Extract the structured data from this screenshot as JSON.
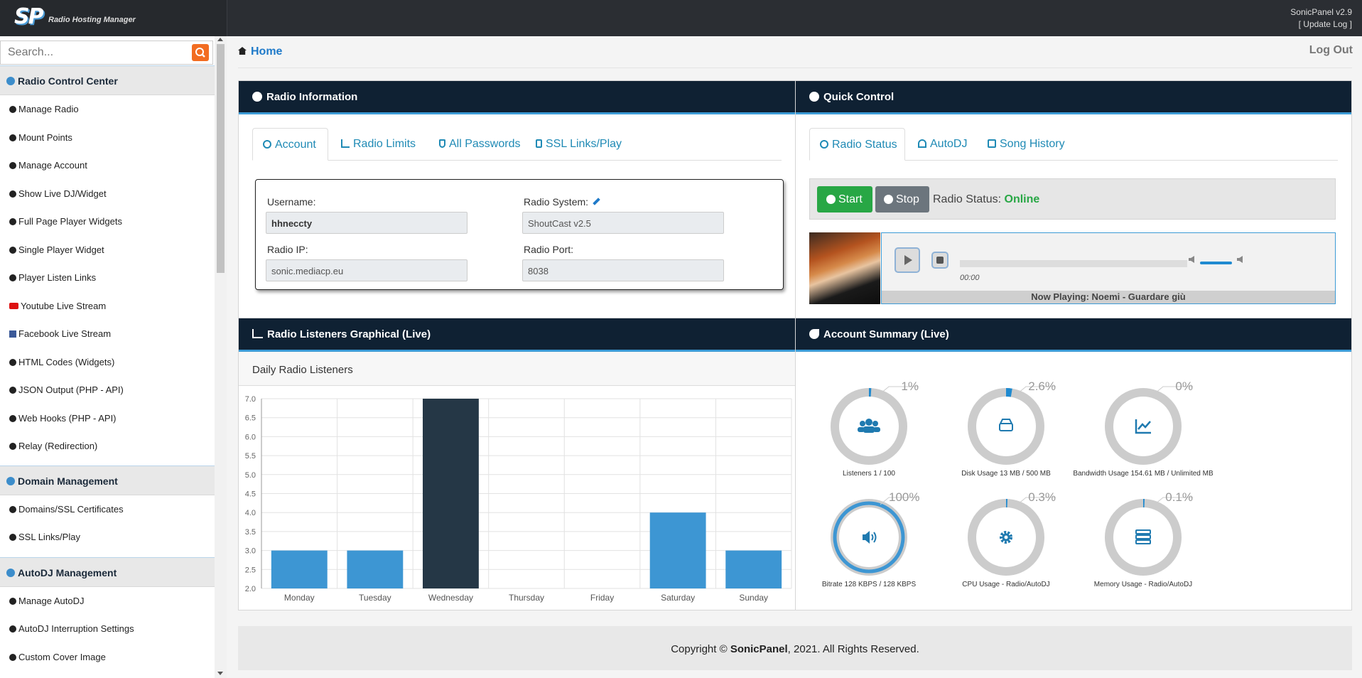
{
  "header": {
    "logo_text": "SP",
    "logo_sub": "Radio Hosting Manager",
    "version": "SonicPanel v2.9",
    "update_log": "[ Update Log ]"
  },
  "sidebar": {
    "search_placeholder": "Search...",
    "sections": [
      {
        "title": "Radio Control Center",
        "items": [
          "Manage Radio",
          "Mount Points",
          "Manage Account",
          "Show Live DJ/Widget",
          "Full Page Player Widgets",
          "Single Player Widget",
          "Player Listen Links",
          "Youtube Live Stream",
          "Facebook Live Stream",
          "HTML Codes (Widgets)",
          "JSON Output (PHP - API)",
          "Web Hooks (PHP - API)",
          "Relay (Redirection)"
        ]
      },
      {
        "title": "Domain Management",
        "items": [
          "Domains/SSL Certificates",
          "SSL Links/Play"
        ]
      },
      {
        "title": "AutoDJ Management",
        "items": [
          "Manage AutoDJ",
          "AutoDJ Interruption Settings",
          "Custom Cover Image"
        ]
      }
    ]
  },
  "breadcrumb": {
    "home": "Home",
    "logout": "Log Out"
  },
  "radio_info": {
    "title": "Radio Information",
    "tabs": [
      "Account",
      "Radio Limits",
      "All Passwords",
      "SSL Links/Play"
    ],
    "username_label": "Username:",
    "username": "hhneccty",
    "system_label": "Radio System:",
    "system": "ShoutCast v2.5",
    "ip_label": "Radio IP:",
    "ip": "sonic.mediacp.eu",
    "port_label": "Radio Port:",
    "port": "8038"
  },
  "quick_control": {
    "title": "Quick Control",
    "tabs": [
      "Radio Status",
      "AutoDJ",
      "Song History"
    ],
    "start": "Start",
    "stop": "Stop",
    "status_label": "Radio Status:",
    "status_value": "Online",
    "time": "00:00",
    "now_playing": "Now Playing: Noemi - Guardare giù",
    "volume": 1.0
  },
  "listeners_chart": {
    "title": "Radio Listeners Graphical (Live)",
    "subtitle": "Daily Radio Listeners"
  },
  "chart_data": {
    "type": "bar",
    "categories": [
      "Monday",
      "Tuesday",
      "Wednesday",
      "Thursday",
      "Friday",
      "Saturday",
      "Sunday"
    ],
    "values": [
      3.0,
      3.0,
      7.0,
      null,
      null,
      4.0,
      3.0
    ],
    "highlight_index": 2,
    "ylim": [
      2.0,
      7.0
    ],
    "yticks": [
      "7.0",
      "6.5",
      "6.0",
      "5.5",
      "5.0",
      "4.5",
      "4.0",
      "3.5",
      "3.0",
      "2.5",
      "2.0"
    ],
    "colors": {
      "bar": "#3d96d3",
      "highlight": "#253746"
    },
    "grid": true
  },
  "account_summary": {
    "title": "Account Summary (Live)",
    "gauges": [
      {
        "pct": "1%",
        "value": 1,
        "label": "Listeners 1 / 100",
        "icon": "users-icon"
      },
      {
        "pct": "2.6%",
        "value": 2.6,
        "label": "Disk Usage 13 MB / 500 MB",
        "icon": "hdd-icon"
      },
      {
        "pct": "0%",
        "value": 0,
        "label": "Bandwidth Usage 154.61 MB / Unlimited MB",
        "icon": "chart-line-icon"
      },
      {
        "pct": "100%",
        "value": 100,
        "label": "Bitrate 128 KBPS / 128 KBPS",
        "icon": "volume-icon"
      },
      {
        "pct": "0.3%",
        "value": 0.3,
        "label": "CPU Usage - Radio/AutoDJ",
        "icon": "gear-icon"
      },
      {
        "pct": "0.1%",
        "value": 0.1,
        "label": "Memory Usage - Radio/AutoDJ",
        "icon": "server-icon"
      }
    ]
  },
  "footer": {
    "prefix": "Copyright © ",
    "brand": "SonicPanel",
    "suffix": ", 2021. All Rights Reserved."
  },
  "colors": {
    "accent": "#1f7ac9",
    "header_bg": "#0f2133",
    "online": "#28a745",
    "start": "#28a745",
    "stop": "#6c757d",
    "search_btn": "#f26c21"
  }
}
